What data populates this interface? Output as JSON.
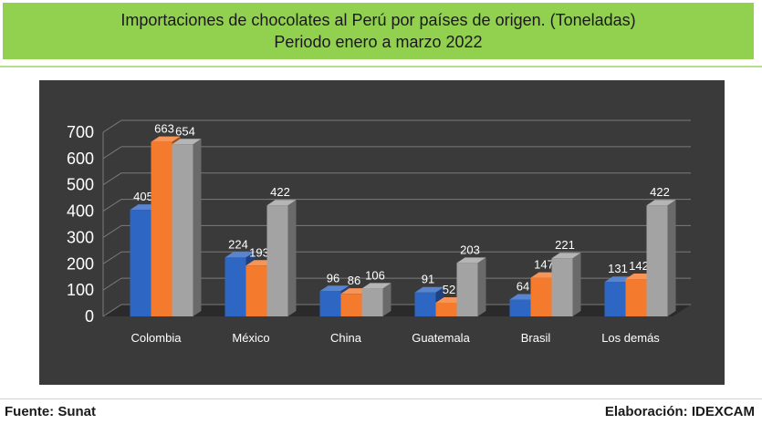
{
  "header": {
    "title_line1": "Importaciones de chocolates al Perú por países de origen. (Toneladas)",
    "title_line2": "Periodo enero a marzo 2022"
  },
  "footer": {
    "source": "Fuente:  Sunat",
    "credit": "Elaboración: IDEXCAM"
  },
  "chart_data": {
    "type": "bar",
    "title": "Importaciones de chocolates al Perú por países de origen. (Toneladas)",
    "subtitle": "Periodo enero a marzo 2022",
    "categories": [
      "Colombia",
      "México",
      "China",
      "Guatemala",
      "Brasil",
      "Los demás"
    ],
    "series": [
      {
        "color": "#2e66c4",
        "values": [
          405,
          224,
          96,
          91,
          64,
          131
        ]
      },
      {
        "color": "#f47a2d",
        "values": [
          663,
          193,
          86,
          52,
          147,
          142
        ]
      },
      {
        "color": "#a3a3a3",
        "values": [
          654,
          422,
          106,
          203,
          221,
          422
        ]
      }
    ],
    "ylim": [
      0,
      700
    ],
    "yticks": [
      0,
      100,
      200,
      300,
      400,
      500,
      600,
      700
    ],
    "grid": true,
    "legend": "none",
    "style": "3d-clustered-column"
  }
}
